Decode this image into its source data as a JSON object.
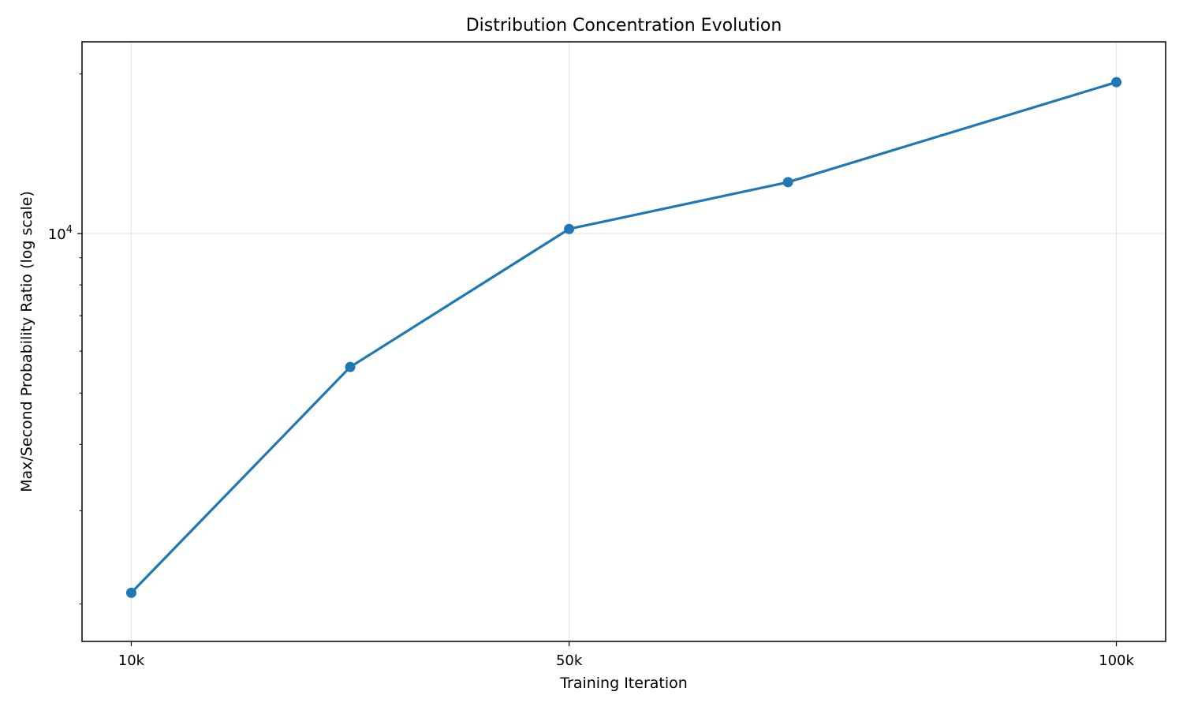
{
  "chart_data": {
    "type": "line",
    "title": "Distribution Concentration Evolution",
    "xlabel": "Training Iteration",
    "ylabel": "Max/Second Probability Ratio (log scale)",
    "yscale": "log",
    "grid": true,
    "xlim": [
      5500,
      104500
    ],
    "ylim": [
      1700,
      23000
    ],
    "x_ticks": [
      {
        "value": 10000,
        "label": "10k"
      },
      {
        "value": 50000,
        "label": "50k"
      },
      {
        "value": 100000,
        "label": "100k"
      }
    ],
    "y_ticks": [
      {
        "value": 10000,
        "base": "10",
        "exponent": "4"
      }
    ],
    "series": [
      {
        "color": "#1f77b4",
        "marker": "circle",
        "x": [
          10000,
          30000,
          50000,
          70000,
          100000
        ],
        "y": [
          2100,
          5600,
          10200,
          12500,
          19300
        ]
      }
    ]
  }
}
